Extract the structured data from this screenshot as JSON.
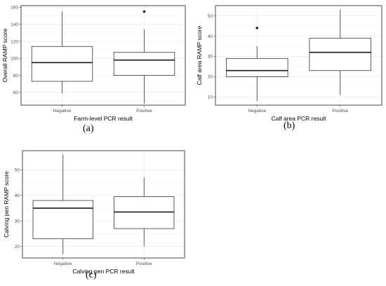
{
  "chart_data": [
    {
      "id": "a",
      "type": "box",
      "panel_label": "(a)",
      "xlabel": "Farm-level PCR result",
      "ylabel": "Overall RAMP score",
      "categories": [
        "Negative",
        "Positive"
      ],
      "ylim": [
        45,
        162
      ],
      "yticks": [
        60,
        80,
        100,
        120,
        140,
        160
      ],
      "boxes": [
        {
          "category": "Negative",
          "whisker_low": 59,
          "q1": 73,
          "median": 95,
          "q3": 114,
          "whisker_high": 155,
          "outliers": []
        },
        {
          "category": "Positive",
          "whisker_low": 47,
          "q1": 80,
          "median": 98,
          "q3": 107,
          "whisker_high": 134,
          "outliers": [
            155
          ]
        }
      ],
      "grid": true
    },
    {
      "id": "b",
      "type": "box",
      "panel_label": "(b)",
      "xlabel": "Calf area PCR result",
      "ylabel": "Calf area RAMP score",
      "categories": [
        "Negative",
        "Positive"
      ],
      "ylim": [
        6,
        55
      ],
      "yticks": [
        10,
        20,
        30,
        40,
        50
      ],
      "boxes": [
        {
          "category": "Negative",
          "whisker_low": 8,
          "q1": 20,
          "median": 23,
          "q3": 29,
          "whisker_high": 35,
          "outliers": [
            44
          ]
        },
        {
          "category": "Positive",
          "whisker_low": 11,
          "q1": 23,
          "median": 32,
          "q3": 39,
          "whisker_high": 53,
          "outliers": []
        }
      ],
      "grid": true
    },
    {
      "id": "c",
      "type": "box",
      "panel_label": "(c)",
      "xlabel": "Calving pen PCR result",
      "ylabel": "Calving pen RAMP score",
      "categories": [
        "Negative",
        "Positive"
      ],
      "ylim": [
        15.5,
        57.5
      ],
      "yticks": [
        20,
        30,
        40,
        50
      ],
      "boxes": [
        {
          "category": "Negative",
          "whisker_low": 17,
          "q1": 23,
          "median": 35,
          "q3": 38,
          "whisker_high": 56,
          "outliers": []
        },
        {
          "category": "Positive",
          "whisker_low": 20,
          "q1": 27,
          "median": 33.5,
          "q3": 39.5,
          "whisker_high": 47,
          "outliers": []
        }
      ],
      "grid": true
    }
  ]
}
